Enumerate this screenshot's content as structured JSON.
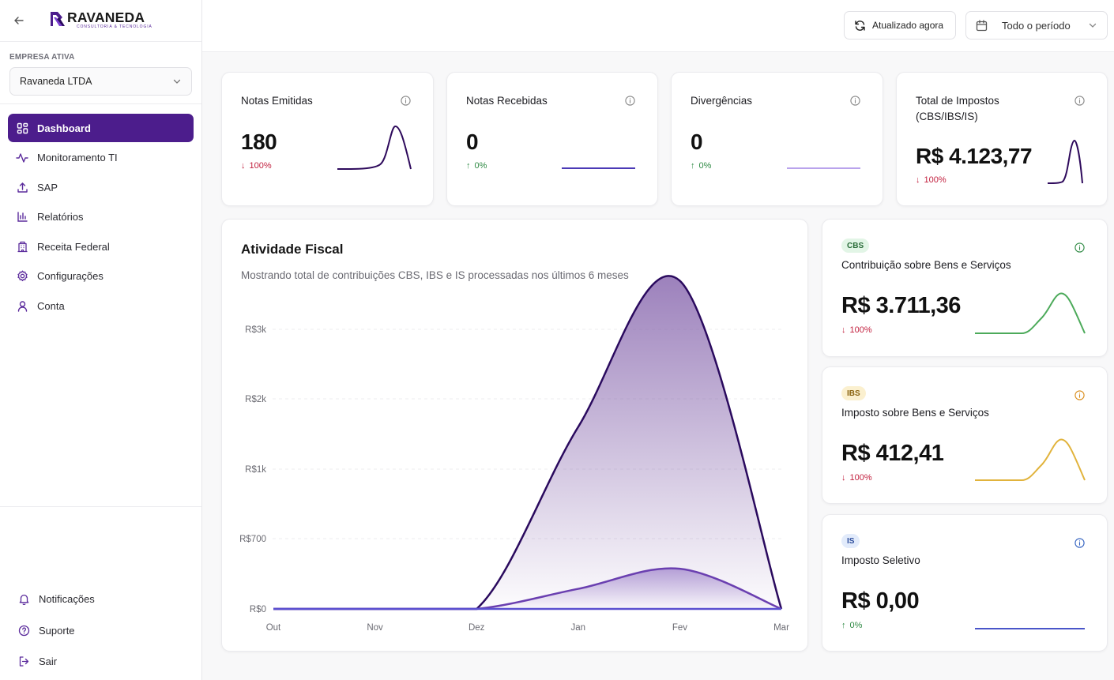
{
  "brand": {
    "name": "RAVANEDA",
    "tagline": "CONSULTORIA & TECNOLOGIA"
  },
  "sidebar": {
    "company_label": "EMPRESA ATIVA",
    "company_selected": "Ravaneda LTDA",
    "items": [
      {
        "label": "Dashboard",
        "icon": "dashboard-icon",
        "active": true
      },
      {
        "label": "Monitoramento TI",
        "icon": "activity-icon"
      },
      {
        "label": "SAP",
        "icon": "upload-icon"
      },
      {
        "label": "Relatórios",
        "icon": "bar-chart-icon"
      },
      {
        "label": "Receita Federal",
        "icon": "building-icon"
      },
      {
        "label": "Configurações",
        "icon": "gear-icon"
      },
      {
        "label": "Conta",
        "icon": "user-icon"
      }
    ],
    "bottom_items": [
      {
        "label": "Notificações",
        "icon": "bell-icon"
      },
      {
        "label": "Suporte",
        "icon": "help-circle-icon"
      },
      {
        "label": "Sair",
        "icon": "logout-icon"
      }
    ]
  },
  "header": {
    "refresh_label": "Atualizado agora",
    "period_label": "Todo o período"
  },
  "kpis": [
    {
      "title": "Notas Emitidas",
      "value": "180",
      "change": "100%",
      "trend": "down",
      "color": "#2e0a5c"
    },
    {
      "title": "Notas Recebidas",
      "value": "0",
      "change": "0%",
      "trend": "up",
      "color": "#4b3ab6"
    },
    {
      "title": "Divergências",
      "value": "0",
      "change": "0%",
      "trend": "up",
      "color": "#b9a3ec"
    },
    {
      "title": "Total de Impostos (CBS/IBS/IS)",
      "value": "R$ 4.123,77",
      "change": "100%",
      "trend": "down",
      "color": "#2e0a5c"
    }
  ],
  "activity": {
    "title": "Atividade Fiscal",
    "subtitle": "Mostrando total de contribuições CBS, IBS e IS processadas nos últimos 6 meses"
  },
  "chart_data": {
    "type": "area",
    "title": "Atividade Fiscal",
    "categories": [
      "Out",
      "Nov",
      "Dez",
      "Jan",
      "Fev",
      "Mar"
    ],
    "y_ticks": [
      "R$0",
      "R$700",
      "R$1k",
      "R$2k",
      "R$3k"
    ],
    "series": [
      {
        "values": [
          0,
          0,
          0,
          1600,
          3700,
          0
        ],
        "color": "#2a0a5e"
      },
      {
        "values": [
          0,
          0,
          0,
          200,
          400,
          0
        ],
        "color": "#6a3fb0"
      },
      {
        "values": [
          0,
          0,
          0,
          0,
          0,
          0
        ],
        "color": "#5a4fd0"
      }
    ],
    "grid": true
  },
  "taxes": [
    {
      "badge": "CBS",
      "name": "Contribuição sobre Bens e Serviços",
      "value": "R$ 3.711,36",
      "change": "100%",
      "trend": "down",
      "color": "#4caa5a",
      "badge_bg": "#e2f5e6",
      "badge_fg": "#2b6d3a",
      "info_color": "#2f8a44"
    },
    {
      "badge": "IBS",
      "name": "Imposto sobre Bens e Serviços",
      "value": "R$ 412,41",
      "change": "100%",
      "trend": "down",
      "color": "#e1b33c",
      "badge_bg": "#fbf0cf",
      "badge_fg": "#8a6310",
      "info_color": "#d98c1a"
    },
    {
      "badge": "IS",
      "name": "Imposto Seletivo",
      "value": "R$ 0,00",
      "change": "0%",
      "trend": "up",
      "color": "#4a55c9",
      "badge_bg": "#e2ebfb",
      "badge_fg": "#2c4c9b",
      "info_color": "#2f5fbf"
    }
  ]
}
